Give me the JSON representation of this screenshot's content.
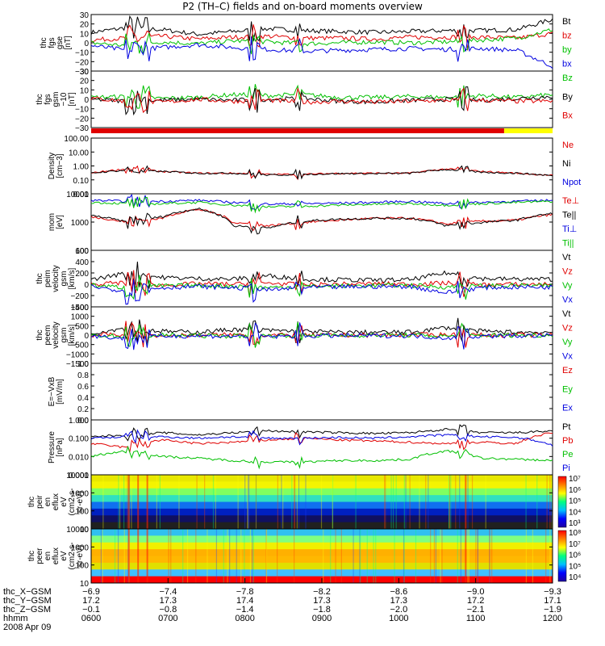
{
  "title": "P2 (TH–C) fields and on-board moments overview",
  "colors": {
    "black": "#000000",
    "red": "#e00000",
    "green": "#00c000",
    "blue": "#0000e0",
    "yellow": "#ffff00"
  },
  "chart_data": [
    {
      "type": "line",
      "ylabel": [
        "thc",
        "fgs",
        "gse",
        "[nT]"
      ],
      "ylim": [
        -30,
        30
      ],
      "ticks": [
        "30",
        "20",
        "10",
        "0",
        "−10",
        "−20",
        "−30"
      ],
      "series": [
        {
          "name": "Bt",
          "color": "black",
          "values": [
            11,
            16,
            14,
            9,
            12,
            15,
            13,
            12,
            11,
            12,
            13,
            13,
            14,
            25
          ]
        },
        {
          "name": "bz",
          "color": "red",
          "values": [
            3,
            5,
            7,
            4,
            6,
            7,
            5,
            5,
            4,
            6,
            6,
            6,
            5,
            10
          ]
        },
        {
          "name": "by",
          "color": "green",
          "values": [
            0,
            -3,
            1,
            -1,
            2,
            1,
            -1,
            0,
            1,
            0,
            1,
            3,
            5,
            14
          ]
        },
        {
          "name": "bx",
          "color": "blue",
          "values": [
            -3,
            -8,
            -5,
            -2,
            -5,
            -7,
            -9,
            -8,
            -7,
            -6,
            -7,
            -6,
            -8,
            -25
          ]
        }
      ]
    },
    {
      "type": "line",
      "ylabel": [
        "thc",
        "fgs",
        "gsm",
        "−10",
        "[nT]"
      ],
      "ylim": [
        -30,
        30
      ],
      "ticks": [
        "30",
        "20",
        "10",
        "0",
        "−10",
        "−20",
        "−30"
      ],
      "series": [
        {
          "name": "Bz",
          "color": "green",
          "values": [
            2,
            3,
            1,
            2,
            5,
            4,
            5,
            2,
            2,
            3,
            2,
            4,
            2,
            5
          ]
        },
        {
          "name": "By",
          "color": "black",
          "values": [
            0,
            -2,
            -1,
            0,
            -1,
            0,
            1,
            -2,
            -3,
            -1,
            0,
            -1,
            1,
            3
          ]
        },
        {
          "name": "Bx",
          "color": "red",
          "values": [
            1,
            -2,
            -3,
            0,
            -2,
            -1,
            -3,
            -2,
            -3,
            -2,
            -1,
            -1,
            -2,
            -2
          ]
        }
      ]
    },
    {
      "type": "line",
      "ylabel": [
        "Density",
        "[cm−3]"
      ],
      "ylim": [
        0.01,
        100
      ],
      "scale": "log",
      "ticks": [
        "100.00",
        "10.00",
        "1.00",
        "0.10",
        "0.01"
      ],
      "series": [
        {
          "name": "Ne",
          "color": "red",
          "values": [
            0.3,
            0.6,
            0.4,
            0.3,
            0.3,
            0.25,
            0.25,
            0.3,
            0.3,
            0.3,
            0.6,
            0.4,
            0.3,
            0.2
          ]
        },
        {
          "name": "Ni",
          "color": "black",
          "values": [
            0.3,
            0.5,
            0.4,
            0.3,
            0.3,
            0.22,
            0.25,
            0.28,
            0.28,
            0.3,
            0.55,
            0.35,
            0.3,
            0.2
          ]
        },
        {
          "name": "Npot",
          "color": "blue",
          "values": []
        }
      ]
    },
    {
      "type": "line",
      "ylabel": [
        "mom",
        "[eV]"
      ],
      "ylim": [
        10,
        10000
      ],
      "scale": "log",
      "ticks": [
        "10000",
        "1000",
        "100"
      ],
      "series": [
        {
          "name": "Te⊥",
          "color": "red",
          "values": [
            600,
            300,
            500,
            1500,
            300,
            200,
            300,
            400,
            500,
            500,
            250,
            350,
            400,
            800
          ]
        },
        {
          "name": "Te||",
          "color": "black",
          "values": [
            700,
            300,
            600,
            1600,
            200,
            150,
            350,
            450,
            500,
            500,
            200,
            300,
            400,
            900
          ]
        },
        {
          "name": "Ti⊥",
          "color": "blue",
          "values": [
            4500,
            4000,
            4000,
            4500,
            3500,
            2800,
            3000,
            3200,
            3500,
            4000,
            3000,
            3500,
            4000,
            4500
          ]
        },
        {
          "name": "Ti||",
          "color": "green",
          "values": [
            3500,
            3000,
            3000,
            3500,
            2500,
            2000,
            2200,
            2500,
            2800,
            3000,
            2500,
            3000,
            3500,
            4000
          ]
        }
      ]
    },
    {
      "type": "line",
      "ylabel": [
        "thc",
        "peim",
        "velocity",
        "gsm",
        "[km/s]"
      ],
      "ylim": [
        -400,
        600
      ],
      "ticks": [
        "600",
        "400",
        "200",
        "0",
        "−200",
        "−400"
      ],
      "series": [
        {
          "name": "Vt",
          "color": "black",
          "values": [
            80,
            200,
            120,
            100,
            90,
            150,
            90,
            80,
            70,
            80,
            200,
            100,
            90,
            90
          ]
        },
        {
          "name": "Vz",
          "color": "red",
          "values": [
            0,
            30,
            -20,
            10,
            0,
            20,
            -10,
            0,
            10,
            0,
            20,
            -10,
            0,
            0
          ]
        },
        {
          "name": "Vy",
          "color": "green",
          "values": [
            -20,
            -60,
            -30,
            -20,
            -30,
            -60,
            -40,
            -30,
            -20,
            -20,
            -50,
            -30,
            -20,
            -30
          ]
        },
        {
          "name": "Vx",
          "color": "blue",
          "values": [
            -40,
            -120,
            -60,
            -40,
            -60,
            -100,
            -60,
            -50,
            -40,
            -40,
            -150,
            -60,
            -50,
            -50
          ]
        }
      ]
    },
    {
      "type": "line",
      "ylabel": [
        "thc",
        "peem",
        "velocity",
        "gsm",
        "[km/s]"
      ],
      "ylim": [
        -1500,
        1500
      ],
      "ticks": [
        "1500",
        "1000",
        "500",
        "0",
        "−500",
        "−1000",
        "−1500"
      ],
      "series": [
        {
          "name": "Vt",
          "color": "black",
          "values": [
            100,
            400,
            200,
            150,
            300,
            250,
            200,
            150,
            150,
            150,
            400,
            200,
            150,
            150
          ]
        },
        {
          "name": "Vz",
          "color": "red",
          "values": [
            0,
            50,
            -30,
            0,
            20,
            0,
            -20,
            0,
            0,
            10,
            30,
            0,
            0,
            0
          ]
        },
        {
          "name": "Vy",
          "color": "green",
          "values": [
            0,
            -80,
            0,
            -20,
            -50,
            -30,
            0,
            -20,
            0,
            0,
            -60,
            0,
            -10,
            0
          ]
        },
        {
          "name": "Vx",
          "color": "blue",
          "values": [
            -20,
            -200,
            -50,
            -40,
            -60,
            -80,
            -40,
            -30,
            -30,
            -30,
            -150,
            -50,
            -40,
            -30
          ]
        }
      ]
    },
    {
      "type": "line",
      "ylabel": [
        "E=−VxB",
        "[mV/m]"
      ],
      "ylim": [
        0,
        1
      ],
      "ticks": [
        "1.0",
        "0.8",
        "0.6",
        "0.4",
        "0.2",
        "0.0"
      ],
      "series": [
        {
          "name": "Ez",
          "color": "red",
          "values": []
        },
        {
          "name": "Ey",
          "color": "green",
          "values": []
        },
        {
          "name": "Ex",
          "color": "blue",
          "values": []
        }
      ]
    },
    {
      "type": "line",
      "ylabel": [
        "Pressure",
        "[nPa]"
      ],
      "ylim": [
        0.001,
        1
      ],
      "scale": "log",
      "ticks": [
        "1.000",
        "0.100",
        "0.010",
        "0.001"
      ],
      "series": [
        {
          "name": "Pt",
          "color": "black",
          "values": [
            0.12,
            0.15,
            0.2,
            0.15,
            0.2,
            0.25,
            0.22,
            0.2,
            0.18,
            0.2,
            0.3,
            0.2,
            0.2,
            0.25
          ]
        },
        {
          "name": "Pb",
          "color": "red",
          "values": [
            0.05,
            0.03,
            0.08,
            0.05,
            0.06,
            0.08,
            0.1,
            0.08,
            0.07,
            0.06,
            0.05,
            0.06,
            0.05,
            0.2
          ]
        },
        {
          "name": "Pe",
          "color": "green",
          "values": [
            0.01,
            0.02,
            0.01,
            0.008,
            0.006,
            0.005,
            0.005,
            0.006,
            0.006,
            0.007,
            0.02,
            0.008,
            0.007,
            0.006
          ]
        },
        {
          "name": "Pi",
          "color": "blue",
          "values": [
            0.1,
            0.12,
            0.12,
            0.1,
            0.12,
            0.1,
            0.1,
            0.11,
            0.1,
            0.12,
            0.15,
            0.12,
            0.11,
            0.04
          ]
        }
      ]
    },
    {
      "type": "heatmap",
      "ylabel": [
        "thc",
        "peir",
        "en",
        "eflux",
        "eV",
        "(cm2-s-",
        "sr-eV)"
      ],
      "ylim": [
        10,
        10000
      ],
      "scale": "log",
      "ticks": [
        "10000",
        "1000",
        "100",
        "10"
      ],
      "colorbar": {
        "range": [
          1000,
          10000000
        ],
        "ticks": [
          "10⁷",
          "10⁶",
          "10⁵",
          "10⁴",
          "10³"
        ]
      }
    },
    {
      "type": "heatmap",
      "ylabel": [
        "thc",
        "peer",
        "en",
        "eflux",
        "eV",
        "(cm2-s-",
        "sr-eV)"
      ],
      "ylim": [
        10,
        10000
      ],
      "scale": "log",
      "ticks": [
        "10000",
        "1000",
        "100",
        "10"
      ],
      "colorbar": {
        "range": [
          10000,
          100000000
        ],
        "ticks": [
          "10⁸",
          "10⁷",
          "10⁶",
          "10⁵",
          "10⁴"
        ]
      }
    }
  ],
  "x_axis": {
    "rows": [
      {
        "label": "thc_X−GSM",
        "values": [
          "−6.9",
          "−7.4",
          "−7.8",
          "−8.2",
          "−8.6",
          "−9.0",
          "−9.3"
        ]
      },
      {
        "label": "thc_Y−GSM",
        "values": [
          "17.2",
          "17.3",
          "17.4",
          "17.3",
          "17.3",
          "17.2",
          "17.1"
        ]
      },
      {
        "label": "thc_Z−GSM",
        "values": [
          "−0.1",
          "−0.8",
          "−1.4",
          "−1.8",
          "−2.0",
          "−2.1",
          "−1.9"
        ]
      },
      {
        "label": "hhmm",
        "values": [
          "0600",
          "0700",
          "0800",
          "0900",
          "1000",
          "1100",
          "1200"
        ]
      }
    ],
    "date": "2008 Apr 09"
  },
  "mode_bar": {
    "colors": [
      "red",
      "yellow"
    ],
    "switch_fraction": 0.895
  }
}
